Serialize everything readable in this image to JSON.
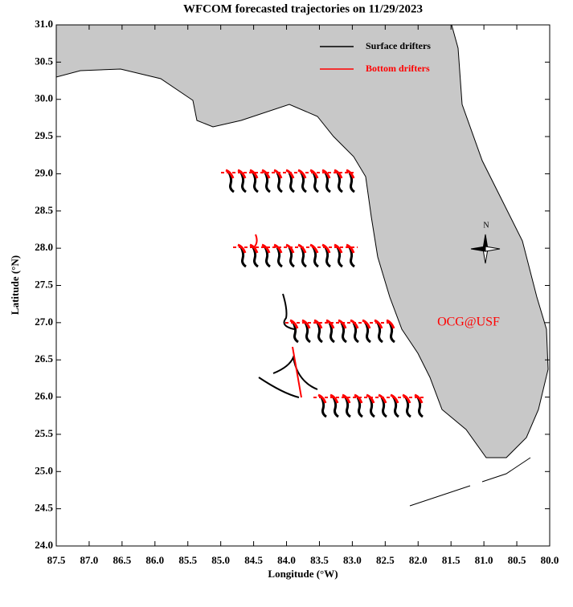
{
  "chart_data": {
    "type": "map",
    "title": "WFCOM forecasted trajectories on 11/29/2023",
    "x_label": "Longitude (°W)",
    "y_label": "Latitude (°N)",
    "xlim": [
      87.5,
      80
    ],
    "ylim": [
      24,
      31
    ],
    "xticks": [
      87.5,
      {
        "value": 87,
        "label": "87.0"
      },
      86.5,
      {
        "value": 86,
        "label": "86.0"
      },
      85.5,
      {
        "value": 85,
        "label": "85.0"
      },
      84.5,
      {
        "value": 84,
        "label": "84.0"
      },
      83.5,
      {
        "value": 83,
        "label": "83.0"
      },
      82.5,
      {
        "value": 82,
        "label": "82.0"
      },
      81.5,
      {
        "value": 81,
        "label": "81.0"
      },
      80.5,
      {
        "value": 80,
        "label": "80.0"
      }
    ],
    "yticks": [
      {
        "value": 24,
        "label": "24.0"
      },
      24.5,
      {
        "value": 25,
        "label": "25.0"
      },
      25.5,
      {
        "value": 26,
        "label": "26.0"
      },
      26.5,
      {
        "value": 27,
        "label": "27.0"
      },
      27.5,
      {
        "value": 28,
        "label": "28.0"
      },
      28.5,
      {
        "value": 29,
        "label": "29.0"
      },
      29.5,
      {
        "value": 30,
        "label": "30.0"
      },
      30.5,
      {
        "value": 31,
        "label": "31.0"
      }
    ],
    "series": [
      {
        "name": "Surface drifters",
        "color": "#000000"
      },
      {
        "name": "Bottom drifters",
        "color": "#ff0000"
      }
    ],
    "legend": "upper right",
    "annotations": [
      "OCG@USF",
      "N"
    ]
  }
}
